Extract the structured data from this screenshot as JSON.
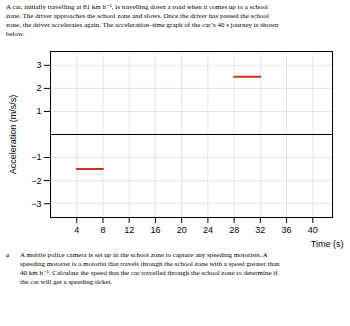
{
  "chart_data": {
    "type": "line",
    "title": [
      "A car, initially travelling at 81 km h⁻¹, is travelling down a road when it comes up to a school",
      "zone. The driver approaches the school zone and slows. Once the driver has passed the school",
      "zone, the driver accelerates again. The acceleration–time graph of the car’s 40 s journey is shown",
      "below."
    ],
    "x_label": "Time (s)",
    "y_label": "Acceleration (m/s/s)",
    "x": [
      4,
      8,
      8,
      28,
      32
    ],
    "values": [
      -1.5,
      -1.5,
      null,
      2.5,
      2.5
    ],
    "color": "#d03020",
    "xlim": [
      0,
      43
    ],
    "ylim": [
      -3.6,
      3.6
    ],
    "xticks": [
      4,
      8,
      12,
      16,
      20,
      24,
      28,
      32,
      36,
      40
    ],
    "yticks": [
      -3,
      -2,
      -1,
      1,
      2,
      3
    ],
    "grid": true,
    "caption": {
      "label": "a",
      "lines": [
        "A mobile police camera is set up in the school zone to capture any speeding motorists. A",
        "speeding motorist is a motorist that travels through the school zone with a speed greater than",
        "40 km h⁻¹. Calculate the speed that the car travelled through the school zone to determine if",
        "the car will get a speeding ticket."
      ]
    }
  }
}
